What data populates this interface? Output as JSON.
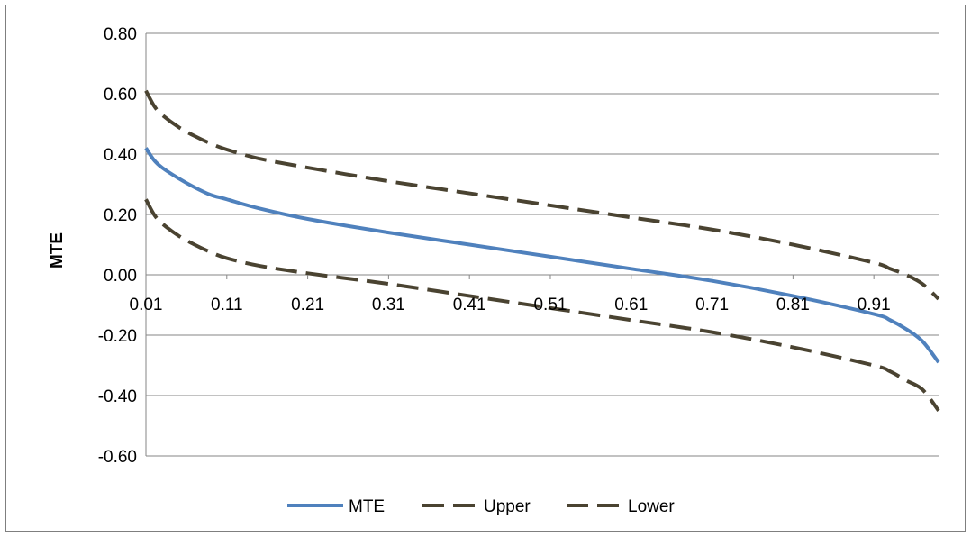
{
  "colors": {
    "mte": "#4f81bd",
    "bands": "#4a4331",
    "gridline": "#868686"
  },
  "chart_data": {
    "type": "line",
    "title": "",
    "xlabel": "",
    "ylabel": "MTE",
    "ylim": [
      -0.6,
      0.8
    ],
    "y_ticks": [
      "0.80",
      "0.60",
      "0.40",
      "0.20",
      "0.00",
      "-0.20",
      "-0.40",
      "-0.60"
    ],
    "y_tick_values": [
      0.8,
      0.6,
      0.4,
      0.2,
      0.0,
      -0.2,
      -0.4,
      -0.6
    ],
    "x_ticks": [
      "0.01",
      "0.11",
      "0.21",
      "0.31",
      "0.41",
      "0.51",
      "0.61",
      "0.71",
      "0.81",
      "0.91"
    ],
    "x_tick_values": [
      0.01,
      0.11,
      0.21,
      0.31,
      0.41,
      0.51,
      0.61,
      0.71,
      0.81,
      0.91
    ],
    "xlim": [
      0.01,
      0.99
    ],
    "grid": true,
    "legend_position": "bottom",
    "x": [
      0.01,
      0.02,
      0.03,
      0.05,
      0.07,
      0.09,
      0.11,
      0.15,
      0.21,
      0.31,
      0.41,
      0.51,
      0.61,
      0.71,
      0.81,
      0.91,
      0.93,
      0.95,
      0.97,
      0.99
    ],
    "series": [
      {
        "name": "MTE",
        "style": "solid",
        "values": [
          0.42,
          0.38,
          0.355,
          0.32,
          0.29,
          0.265,
          0.25,
          0.22,
          0.185,
          0.14,
          0.1,
          0.06,
          0.02,
          -0.02,
          -0.07,
          -0.13,
          -0.15,
          -0.18,
          -0.22,
          -0.29
        ]
      },
      {
        "name": "Upper",
        "style": "dashed",
        "values": [
          0.61,
          0.56,
          0.53,
          0.49,
          0.46,
          0.435,
          0.415,
          0.385,
          0.355,
          0.31,
          0.27,
          0.23,
          0.19,
          0.15,
          0.1,
          0.04,
          0.02,
          0.0,
          -0.03,
          -0.08
        ]
      },
      {
        "name": "Lower",
        "style": "dashed",
        "values": [
          0.25,
          0.2,
          0.17,
          0.13,
          0.1,
          0.075,
          0.055,
          0.03,
          0.005,
          -0.03,
          -0.07,
          -0.11,
          -0.15,
          -0.19,
          -0.24,
          -0.3,
          -0.32,
          -0.35,
          -0.38,
          -0.45
        ]
      }
    ]
  }
}
